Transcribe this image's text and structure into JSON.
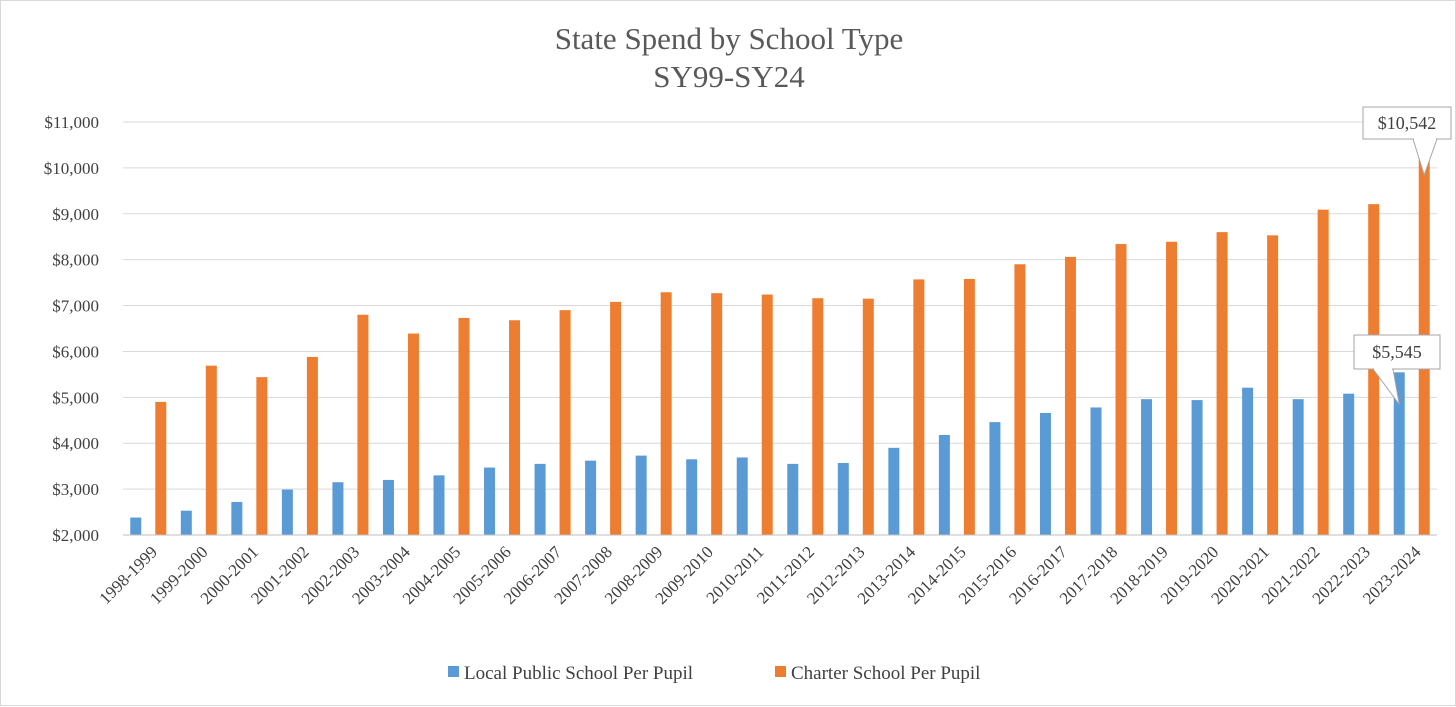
{
  "chart_data": {
    "type": "bar",
    "title": "State Spend by School Type",
    "subtitle": "SY99-SY24",
    "xlabel": "",
    "ylabel": "",
    "ylim": [
      2000,
      11000
    ],
    "yticks": [
      2000,
      3000,
      4000,
      5000,
      6000,
      7000,
      8000,
      9000,
      10000,
      11000
    ],
    "ytick_labels": [
      "$2,000",
      "$3,000",
      "$4,000",
      "$5,000",
      "$6,000",
      "$7,000",
      "$8,000",
      "$9,000",
      "$10,000",
      "$11,000"
    ],
    "grid": true,
    "legend_position": "bottom",
    "categories": [
      "1998-1999",
      "1999-2000",
      "2000-2001",
      "2001-2002",
      "2002-2003",
      "2003-2004",
      "2004-2005",
      "2005-2006",
      "2006-2007",
      "2007-2008",
      "2008-2009",
      "2009-2010",
      "2010-2011",
      "2011-2012",
      "2012-2013",
      "2013-2014",
      "2014-2015",
      "2015-2016",
      "2016-2017",
      "2017-2018",
      "2018-2019",
      "2019-2020",
      "2020-2021",
      "2021-2022",
      "2022-2023",
      "2023-2024"
    ],
    "series": [
      {
        "name": "Local Public School Per Pupil",
        "color": "#5b9bd5",
        "values": [
          2380,
          2530,
          2720,
          2990,
          3150,
          3200,
          3300,
          3470,
          3550,
          3620,
          3730,
          3650,
          3690,
          3550,
          3570,
          3900,
          4180,
          4460,
          4660,
          4780,
          4960,
          4940,
          5210,
          4960,
          5080,
          5545
        ]
      },
      {
        "name": "Charter School Per Pupil",
        "color": "#ed7d31",
        "values": [
          4900,
          5690,
          5440,
          5880,
          6800,
          6390,
          6730,
          6680,
          6900,
          7080,
          7290,
          7270,
          7240,
          7160,
          7150,
          7570,
          7580,
          7900,
          8060,
          8340,
          8390,
          8600,
          8530,
          9090,
          9210,
          10542
        ]
      }
    ],
    "annotations": [
      {
        "text": "$10,542",
        "series": "Charter School Per Pupil",
        "category": "2023-2024"
      },
      {
        "text": "$5,545",
        "series": "Local Public School Per Pupil",
        "category": "2023-2024"
      }
    ]
  }
}
